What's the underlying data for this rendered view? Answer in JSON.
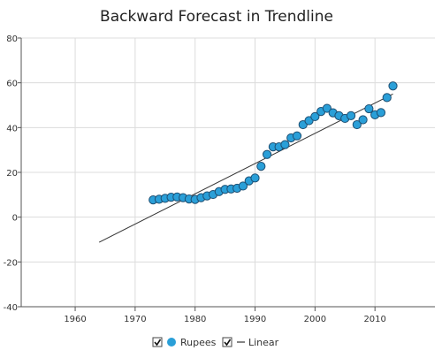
{
  "chart_data": {
    "type": "scatter",
    "title": "Backward Forecast in Trendline",
    "xlabel": "",
    "ylabel": "",
    "xlim": [
      1951,
      2020
    ],
    "ylim": [
      -40,
      80
    ],
    "x_ticks": [
      1960,
      1970,
      1980,
      1990,
      2000,
      2010
    ],
    "y_ticks": [
      -40,
      -20,
      0,
      20,
      40,
      60,
      80
    ],
    "grid": true,
    "legend_position": "bottom-center",
    "series": [
      {
        "name": "Rupees",
        "color": "#2a9fd8",
        "marker": "circle",
        "x": [
          1973,
          1974,
          1975,
          1976,
          1977,
          1978,
          1979,
          1980,
          1981,
          1982,
          1983,
          1984,
          1985,
          1986,
          1987,
          1988,
          1989,
          1990,
          1991,
          1992,
          1993,
          1994,
          1995,
          1996,
          1997,
          1998,
          1999,
          2000,
          2001,
          2002,
          2003,
          2004,
          2005,
          2006,
          2007,
          2008,
          2009,
          2010,
          2011,
          2012,
          2013
        ],
        "y": [
          7.7,
          8.0,
          8.4,
          8.9,
          9.0,
          8.7,
          8.1,
          7.9,
          8.7,
          9.5,
          10.1,
          11.4,
          12.4,
          12.6,
          12.9,
          13.9,
          16.2,
          17.5,
          22.7,
          28.0,
          31.4,
          31.4,
          32.4,
          35.4,
          36.3,
          41.3,
          43.1,
          44.9,
          47.2,
          48.6,
          46.6,
          45.3,
          44.1,
          45.3,
          41.3,
          43.5,
          48.4,
          45.7,
          46.7,
          53.4,
          58.6
        ]
      }
    ],
    "trendline": {
      "name": "Linear",
      "type": "linear",
      "color": "#333333",
      "x": [
        1964,
        2013
      ],
      "y": [
        -11.2,
        55.0
      ]
    },
    "legend": [
      {
        "label": "Rupees",
        "checked": true,
        "marker": "circle",
        "color": "#2a9fd8"
      },
      {
        "label": "Linear",
        "checked": true,
        "marker": "line",
        "color": "#333333"
      }
    ]
  }
}
